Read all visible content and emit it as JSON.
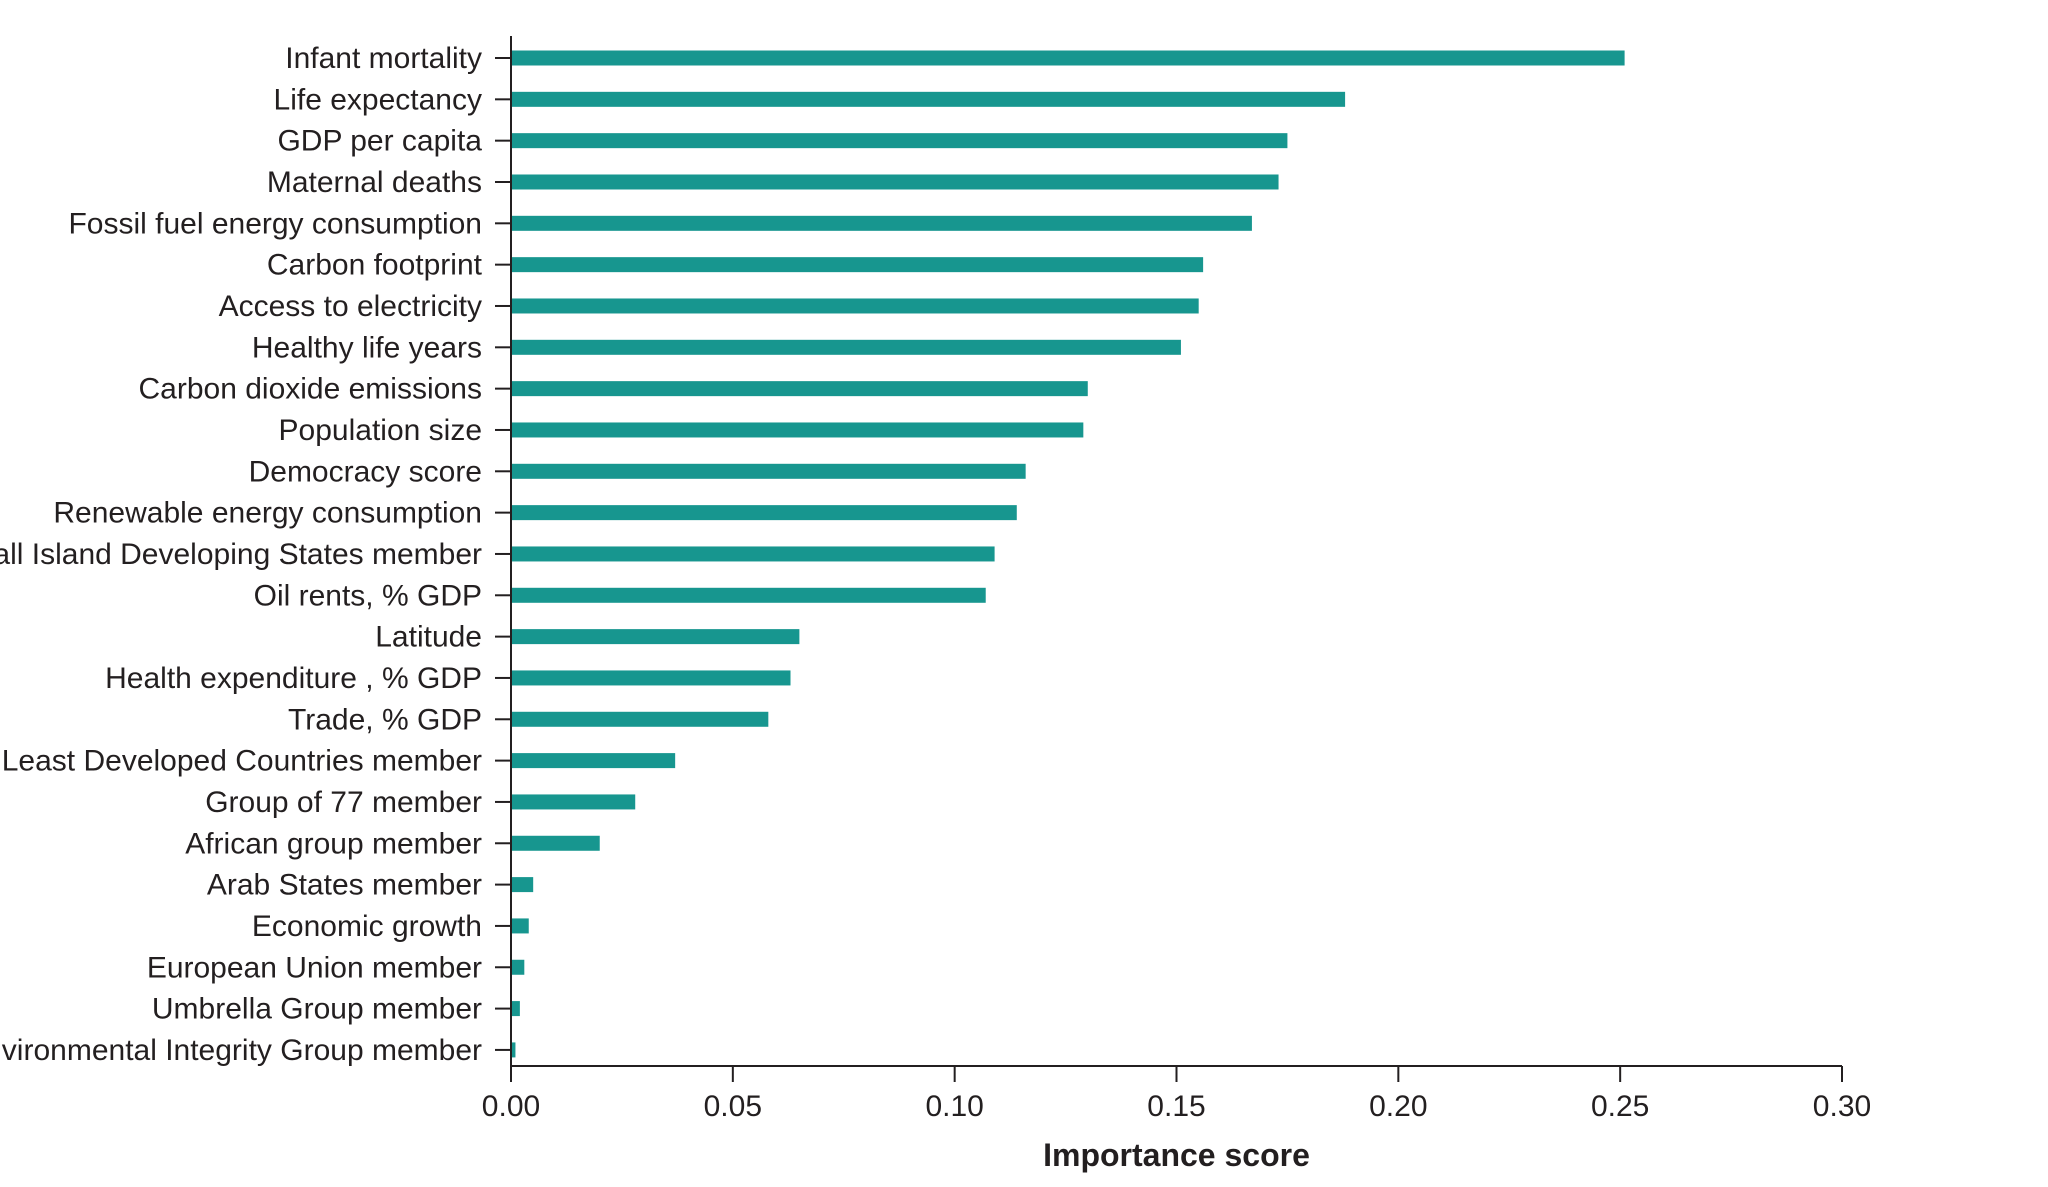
{
  "chart_data": {
    "type": "bar",
    "orientation": "horizontal",
    "categories": [
      "Infant mortality",
      "Life expectancy",
      "GDP per capita",
      "Maternal deaths",
      "Fossil fuel energy consumption",
      "Carbon footprint",
      "Access to electricity",
      "Healthy life years",
      "Carbon dioxide emissions",
      "Population size",
      "Democracy score",
      "Renewable energy consumption",
      "Small Island Developing States member",
      "Oil rents, % GDP",
      "Latitude",
      "Health expenditure , % GDP",
      "Trade, % GDP",
      "Least Developed Countries member",
      "Group of 77 member",
      "African group member",
      "Arab States member",
      "Economic growth",
      "European Union member",
      "Umbrella Group member",
      "Environmental Integrity Group member"
    ],
    "values": [
      0.251,
      0.188,
      0.175,
      0.173,
      0.167,
      0.156,
      0.155,
      0.151,
      0.13,
      0.129,
      0.116,
      0.114,
      0.109,
      0.107,
      0.065,
      0.063,
      0.058,
      0.037,
      0.028,
      0.02,
      0.005,
      0.004,
      0.003,
      0.002,
      0.001
    ],
    "xlabel": "Importance score",
    "ylabel": "",
    "xlim": [
      0,
      0.3
    ],
    "xticks": [
      "0.00",
      "0.05",
      "0.10",
      "0.15",
      "0.20",
      "0.25",
      "0.30"
    ],
    "bar_color": "#17968f",
    "grid": false
  }
}
